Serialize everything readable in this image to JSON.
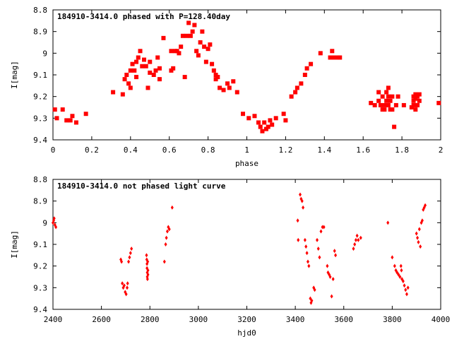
{
  "chart_data": [
    {
      "type": "scatter",
      "title": "184910-3414.0 phased with P=128.40day",
      "xlabel": "phase",
      "ylabel": "I[mag]",
      "xlim": [
        0,
        2
      ],
      "ylim": [
        8.8,
        9.4
      ],
      "y_inverted": true,
      "grid": false,
      "legend": "none",
      "marker": "filled-square",
      "color": "#ff0000",
      "xticks": [
        "0",
        "0.2",
        "0.4",
        "0.6",
        "0.8",
        "1",
        "1.2",
        "1.4",
        "1.6",
        "1.8",
        "2"
      ],
      "yticks": [
        "8.8",
        "8.9",
        "9",
        "9.1",
        "9.2",
        "9.3",
        "9.4"
      ],
      "points": [
        [
          0.01,
          9.26
        ],
        [
          0.02,
          9.3
        ],
        [
          0.05,
          9.26
        ],
        [
          0.07,
          9.31
        ],
        [
          0.09,
          9.31
        ],
        [
          0.1,
          9.29
        ],
        [
          0.12,
          9.32
        ],
        [
          0.17,
          9.28
        ],
        [
          0.31,
          9.18
        ],
        [
          0.36,
          9.19
        ],
        [
          0.37,
          9.12
        ],
        [
          0.38,
          9.1
        ],
        [
          0.39,
          9.14
        ],
        [
          0.4,
          9.08
        ],
        [
          0.4,
          9.16
        ],
        [
          0.41,
          9.05
        ],
        [
          0.42,
          9.08
        ],
        [
          0.43,
          9.04
        ],
        [
          0.43,
          9.11
        ],
        [
          0.44,
          9.02
        ],
        [
          0.45,
          8.99
        ],
        [
          0.46,
          9.06
        ],
        [
          0.47,
          9.03
        ],
        [
          0.48,
          9.06
        ],
        [
          0.49,
          9.16
        ],
        [
          0.5,
          9.04
        ],
        [
          0.5,
          9.09
        ],
        [
          0.52,
          9.1
        ],
        [
          0.53,
          9.08
        ],
        [
          0.54,
          9.02
        ],
        [
          0.55,
          9.07
        ],
        [
          0.55,
          9.12
        ],
        [
          0.57,
          8.93
        ],
        [
          0.61,
          8.99
        ],
        [
          0.61,
          9.08
        ],
        [
          0.62,
          9.07
        ],
        [
          0.63,
          8.99
        ],
        [
          0.64,
          8.99
        ],
        [
          0.65,
          9.0
        ],
        [
          0.66,
          8.97
        ],
        [
          0.67,
          8.92
        ],
        [
          0.68,
          9.11
        ],
        [
          0.69,
          8.92
        ],
        [
          0.7,
          8.86
        ],
        [
          0.71,
          8.92
        ],
        [
          0.72,
          8.9
        ],
        [
          0.73,
          8.87
        ],
        [
          0.74,
          8.99
        ],
        [
          0.75,
          9.01
        ],
        [
          0.76,
          8.95
        ],
        [
          0.77,
          8.9
        ],
        [
          0.78,
          8.97
        ],
        [
          0.79,
          9.04
        ],
        [
          0.8,
          8.98
        ],
        [
          0.81,
          8.96
        ],
        [
          0.82,
          9.05
        ],
        [
          0.83,
          9.08
        ],
        [
          0.84,
          9.1
        ],
        [
          0.84,
          9.12
        ],
        [
          0.85,
          9.11
        ],
        [
          0.86,
          9.16
        ],
        [
          0.88,
          9.17
        ],
        [
          0.9,
          9.14
        ],
        [
          0.91,
          9.16
        ],
        [
          0.93,
          9.13
        ],
        [
          0.95,
          9.18
        ],
        [
          0.98,
          9.28
        ],
        [
          1.01,
          9.3
        ],
        [
          1.04,
          9.29
        ],
        [
          1.06,
          9.32
        ],
        [
          1.07,
          9.34
        ],
        [
          1.08,
          9.36
        ],
        [
          1.09,
          9.32
        ],
        [
          1.1,
          9.35
        ],
        [
          1.11,
          9.34
        ],
        [
          1.12,
          9.31
        ],
        [
          1.13,
          9.33
        ],
        [
          1.15,
          9.3
        ],
        [
          1.19,
          9.28
        ],
        [
          1.2,
          9.31
        ],
        [
          1.23,
          9.2
        ],
        [
          1.25,
          9.18
        ],
        [
          1.26,
          9.16
        ],
        [
          1.28,
          9.14
        ],
        [
          1.3,
          9.1
        ],
        [
          1.31,
          9.07
        ],
        [
          1.33,
          9.05
        ],
        [
          1.38,
          9.0
        ],
        [
          1.43,
          9.02
        ],
        [
          1.44,
          8.99
        ],
        [
          1.45,
          9.02
        ],
        [
          1.47,
          9.02
        ],
        [
          1.48,
          9.02
        ],
        [
          1.64,
          9.23
        ],
        [
          1.66,
          9.24
        ],
        [
          1.68,
          9.18
        ],
        [
          1.68,
          9.22
        ],
        [
          1.69,
          9.24
        ],
        [
          1.7,
          9.26
        ],
        [
          1.7,
          9.2
        ],
        [
          1.71,
          9.24
        ],
        [
          1.71,
          9.26
        ],
        [
          1.72,
          9.18
        ],
        [
          1.72,
          9.22
        ],
        [
          1.73,
          9.16
        ],
        [
          1.73,
          9.2
        ],
        [
          1.73,
          9.24
        ],
        [
          1.74,
          9.26
        ],
        [
          1.74,
          9.22
        ],
        [
          1.75,
          9.2
        ],
        [
          1.75,
          9.26
        ],
        [
          1.76,
          9.34
        ],
        [
          1.77,
          9.24
        ],
        [
          1.78,
          9.2
        ],
        [
          1.81,
          9.24
        ],
        [
          1.85,
          9.25
        ],
        [
          1.86,
          9.2
        ],
        [
          1.86,
          9.22
        ],
        [
          1.86,
          9.24
        ],
        [
          1.87,
          9.19
        ],
        [
          1.87,
          9.21
        ],
        [
          1.87,
          9.26
        ],
        [
          1.88,
          9.2
        ],
        [
          1.88,
          9.24
        ],
        [
          1.89,
          9.19
        ],
        [
          1.89,
          9.22
        ],
        [
          1.99,
          9.23
        ]
      ]
    },
    {
      "type": "scatter",
      "title": "184910-3414.0 not phased light curve",
      "xlabel": "hjd0",
      "ylabel": "I[mag]",
      "xlim": [
        2400,
        4000
      ],
      "ylim": [
        8.8,
        9.4
      ],
      "y_inverted": true,
      "grid": false,
      "legend": "none",
      "marker": "filled-diamond",
      "color": "#ff0000",
      "xticks": [
        "2400",
        "2600",
        "2800",
        "3000",
        "3200",
        "3400",
        "3600",
        "3800",
        "4000"
      ],
      "yticks": [
        "8.8",
        "8.9",
        "9",
        "9.1",
        "9.2",
        "9.3",
        "9.4"
      ],
      "points": [
        [
          2400,
          9.0
        ],
        [
          2403,
          8.99
        ],
        [
          2405,
          8.98
        ],
        [
          2408,
          9.01
        ],
        [
          2412,
          9.02
        ],
        [
          2680,
          9.17
        ],
        [
          2683,
          9.18
        ],
        [
          2686,
          9.28
        ],
        [
          2690,
          9.3
        ],
        [
          2694,
          9.29
        ],
        [
          2698,
          9.32
        ],
        [
          2702,
          9.33
        ],
        [
          2706,
          9.3
        ],
        [
          2708,
          9.28
        ],
        [
          2712,
          9.18
        ],
        [
          2716,
          9.16
        ],
        [
          2720,
          9.14
        ],
        [
          2724,
          9.12
        ],
        [
          2786,
          9.15
        ],
        [
          2787,
          9.17
        ],
        [
          2788,
          9.19
        ],
        [
          2788,
          9.21
        ],
        [
          2789,
          9.23
        ],
        [
          2789,
          9.25
        ],
        [
          2790,
          9.26
        ],
        [
          2791,
          9.18
        ],
        [
          2792,
          9.22
        ],
        [
          2792,
          9.24
        ],
        [
          2860,
          9.18
        ],
        [
          2865,
          9.1
        ],
        [
          2868,
          9.07
        ],
        [
          2872,
          9.04
        ],
        [
          2876,
          9.02
        ],
        [
          2880,
          9.03
        ],
        [
          2892,
          8.93
        ],
        [
          3410,
          8.99
        ],
        [
          3412,
          9.08
        ],
        [
          3420,
          8.87
        ],
        [
          3424,
          8.89
        ],
        [
          3428,
          8.9
        ],
        [
          3432,
          8.93
        ],
        [
          3440,
          9.08
        ],
        [
          3444,
          9.11
        ],
        [
          3448,
          9.14
        ],
        [
          3452,
          9.18
        ],
        [
          3456,
          9.2
        ],
        [
          3462,
          9.35
        ],
        [
          3465,
          9.37
        ],
        [
          3468,
          9.36
        ],
        [
          3476,
          9.3
        ],
        [
          3480,
          9.31
        ],
        [
          3490,
          9.08
        ],
        [
          3495,
          9.12
        ],
        [
          3500,
          9.16
        ],
        [
          3506,
          9.04
        ],
        [
          3512,
          9.02
        ],
        [
          3518,
          9.02
        ],
        [
          3532,
          9.2
        ],
        [
          3535,
          9.23
        ],
        [
          3540,
          9.24
        ],
        [
          3544,
          9.25
        ],
        [
          3550,
          9.34
        ],
        [
          3556,
          9.26
        ],
        [
          3562,
          9.13
        ],
        [
          3566,
          9.15
        ],
        [
          3640,
          9.12
        ],
        [
          3645,
          9.1
        ],
        [
          3650,
          9.08
        ],
        [
          3655,
          9.06
        ],
        [
          3660,
          9.08
        ],
        [
          3670,
          9.07
        ],
        [
          3782,
          9.0
        ],
        [
          3800,
          9.16
        ],
        [
          3810,
          9.2
        ],
        [
          3815,
          9.22
        ],
        [
          3820,
          9.23
        ],
        [
          3826,
          9.24
        ],
        [
          3832,
          9.25
        ],
        [
          3836,
          9.2
        ],
        [
          3838,
          9.22
        ],
        [
          3840,
          9.26
        ],
        [
          3845,
          9.27
        ],
        [
          3850,
          9.29
        ],
        [
          3855,
          9.31
        ],
        [
          3860,
          9.33
        ],
        [
          3865,
          9.3
        ],
        [
          3900,
          9.05
        ],
        [
          3904,
          9.07
        ],
        [
          3908,
          9.09
        ],
        [
          3912,
          9.03
        ],
        [
          3916,
          9.11
        ],
        [
          3920,
          9.0
        ],
        [
          3924,
          8.99
        ],
        [
          3928,
          8.94
        ],
        [
          3932,
          8.93
        ],
        [
          3936,
          8.92
        ]
      ]
    }
  ]
}
